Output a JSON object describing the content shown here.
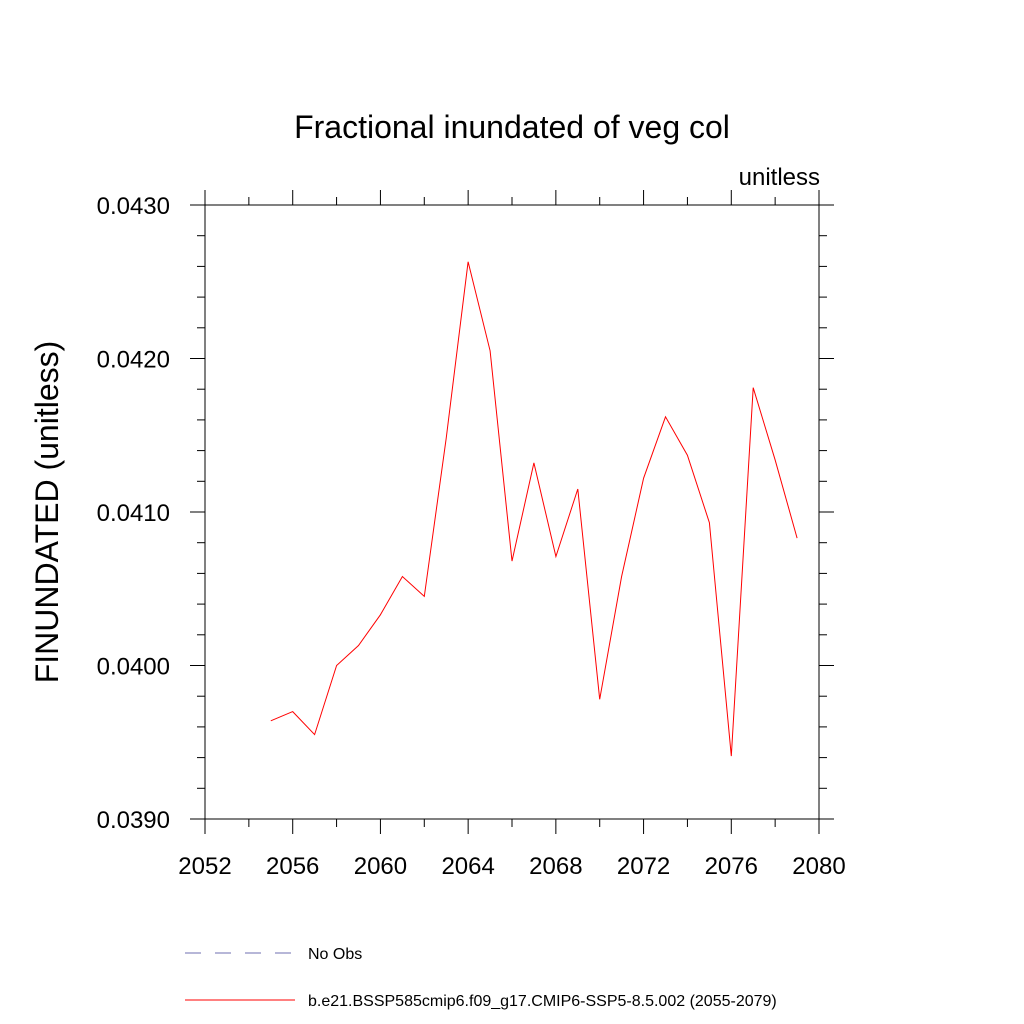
{
  "chart_data": {
    "type": "line",
    "title": "Fractional inundated of veg col",
    "units_label": "unitless",
    "ylabel": "FINUNDATED  (unitless)",
    "xlabel": "",
    "xlim": [
      2052,
      2080
    ],
    "ylim": [
      0.039,
      0.043
    ],
    "x_ticks": [
      2052,
      2056,
      2060,
      2064,
      2068,
      2072,
      2076,
      2080
    ],
    "x_tick_labels": [
      "2052",
      "2056",
      "2060",
      "2064",
      "2068",
      "2072",
      "2076",
      "2080"
    ],
    "y_ticks": [
      0.039,
      0.04,
      0.041,
      0.042,
      0.043
    ],
    "y_tick_labels": [
      "0.0390",
      "0.0400",
      "0.0410",
      "0.0420",
      "0.0430"
    ],
    "grid": false,
    "legend_position": "bottom",
    "series": [
      {
        "name": "b.e21.BSSP585cmip6.f09_g17.CMIP6-SSP5-8.5.002 (2055-2079)",
        "color": "#ff0000",
        "style": "solid",
        "x": [
          2055,
          2056,
          2057,
          2058,
          2059,
          2060,
          2061,
          2062,
          2063,
          2064,
          2065,
          2066,
          2067,
          2068,
          2069,
          2070,
          2071,
          2072,
          2073,
          2074,
          2075,
          2076,
          2077,
          2078,
          2079
        ],
        "values": [
          0.03964,
          0.0397,
          0.03955,
          0.04,
          0.04013,
          0.04033,
          0.04058,
          0.04045,
          0.04148,
          0.04263,
          0.04205,
          0.04068,
          0.04132,
          0.04071,
          0.04115,
          0.03978,
          0.04058,
          0.04122,
          0.04162,
          0.04137,
          0.04093,
          0.03941,
          0.04181,
          0.04134,
          0.04083
        ]
      },
      {
        "name": "No Obs",
        "color": "#6f6fb0",
        "style": "dashed",
        "x": [],
        "values": []
      }
    ]
  }
}
